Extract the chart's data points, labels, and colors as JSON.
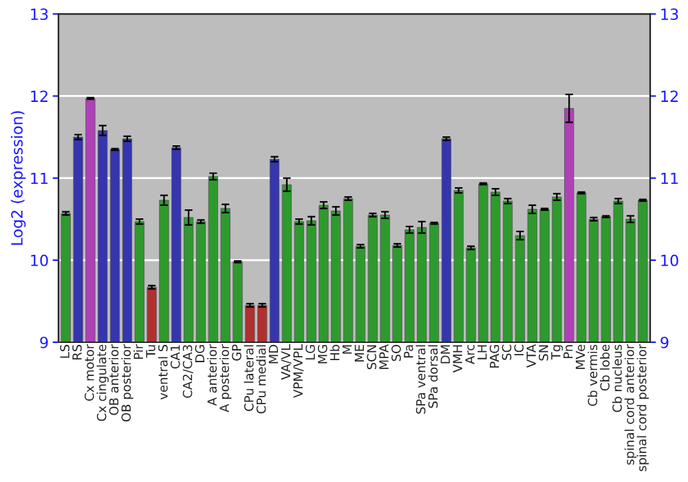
{
  "chart_data": {
    "type": "bar",
    "ylabel": "Log2 (expression)",
    "categories": [
      "LS",
      "RS",
      "Cx motor",
      "Cx cingulate",
      "OB anterior",
      "OB posterior",
      "Pir",
      "Tu",
      "ventral S",
      "CA1",
      "CA2/CA3",
      "DG",
      "A anterior",
      "A posterior",
      "GP",
      "CPu lateral",
      "CPu medial",
      "MD",
      "VA/VL",
      "VPM/VPL",
      "LG",
      "MG",
      "Hb",
      "M",
      "ME",
      "SCN",
      "MPA",
      "SO",
      "Pa",
      "SPa ventral",
      "SPa dorsal",
      "DM",
      "VMH",
      "Arc",
      "LH",
      "PAG",
      "SC",
      "IC",
      "VTA",
      "SN",
      "Tg",
      "Pn",
      "MVe",
      "Cb vermis",
      "Cb lobe",
      "Cb nucleus",
      "spinal cord anterior",
      "spinal cord posterior"
    ],
    "values": [
      10.57,
      11.5,
      11.97,
      11.58,
      11.35,
      11.48,
      10.47,
      9.67,
      10.73,
      11.37,
      10.52,
      10.47,
      11.02,
      10.63,
      9.98,
      9.45,
      9.45,
      11.23,
      10.92,
      10.47,
      10.48,
      10.67,
      10.6,
      10.75,
      10.17,
      10.55,
      10.55,
      10.18,
      10.37,
      10.4,
      10.45,
      11.48,
      10.85,
      10.15,
      10.93,
      10.83,
      10.72,
      10.3,
      10.62,
      10.62,
      10.77,
      11.85,
      10.82,
      10.5,
      10.53,
      10.72,
      10.5,
      10.73
    ],
    "errors": [
      0.02,
      0.03,
      0.01,
      0.06,
      0.01,
      0.03,
      0.03,
      0.02,
      0.06,
      0.02,
      0.09,
      0.02,
      0.04,
      0.05,
      0.01,
      0.02,
      0.02,
      0.03,
      0.08,
      0.03,
      0.05,
      0.04,
      0.05,
      0.02,
      0.02,
      0.02,
      0.04,
      0.02,
      0.04,
      0.07,
      0.01,
      0.02,
      0.03,
      0.02,
      0.01,
      0.04,
      0.03,
      0.05,
      0.05,
      0.01,
      0.04,
      0.17,
      0.01,
      0.02,
      0.01,
      0.03,
      0.04,
      0.01
    ],
    "colors": [
      "#2e9a2e",
      "#3535b0",
      "#b040b8",
      "#3535b0",
      "#3535b0",
      "#3535b0",
      "#2e9a2e",
      "#b03030",
      "#2e9a2e",
      "#3535b0",
      "#2e9a2e",
      "#2e9a2e",
      "#2e9a2e",
      "#2e9a2e",
      "#2e9a2e",
      "#b03030",
      "#b03030",
      "#3535b0",
      "#2e9a2e",
      "#2e9a2e",
      "#2e9a2e",
      "#2e9a2e",
      "#2e9a2e",
      "#2e9a2e",
      "#2e9a2e",
      "#2e9a2e",
      "#2e9a2e",
      "#2e9a2e",
      "#2e9a2e",
      "#2e9a2e",
      "#2e9a2e",
      "#3535b0",
      "#2e9a2e",
      "#2e9a2e",
      "#2e9a2e",
      "#2e9a2e",
      "#2e9a2e",
      "#2e9a2e",
      "#2e9a2e",
      "#2e9a2e",
      "#2e9a2e",
      "#b040b8",
      "#2e9a2e",
      "#2e9a2e",
      "#2e9a2e",
      "#2e9a2e",
      "#2e9a2e",
      "#2e9a2e"
    ],
    "ylim": [
      9,
      13
    ],
    "yticks": [
      9,
      10,
      11,
      12,
      13
    ],
    "y2lim": [
      9,
      13
    ],
    "y2ticks": [
      9,
      10,
      11,
      12,
      13
    ],
    "grid": "y",
    "legend": false
  }
}
